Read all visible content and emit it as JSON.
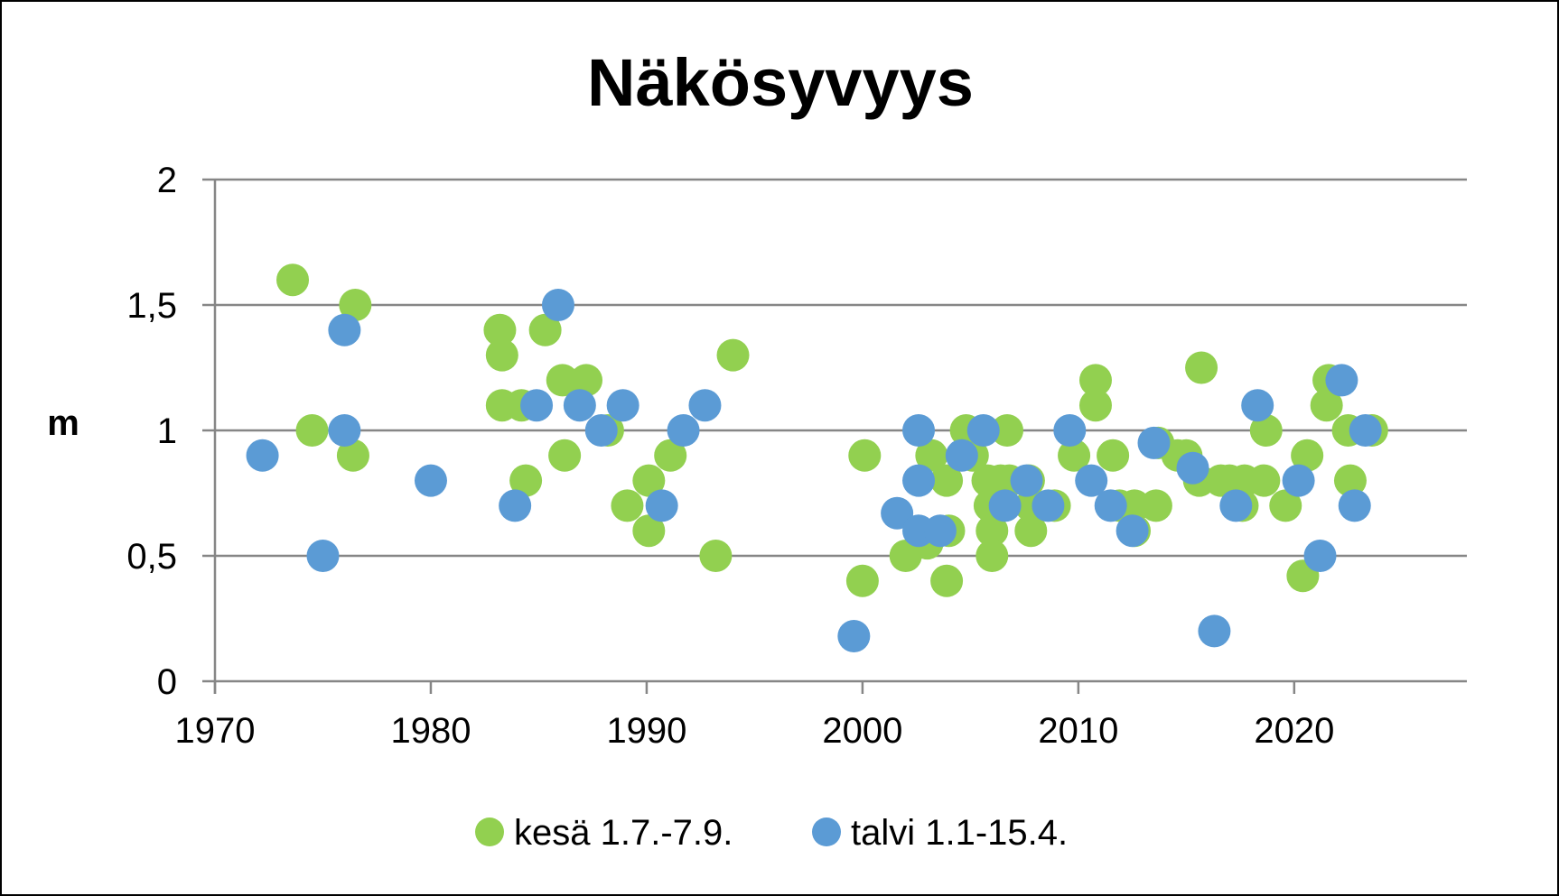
{
  "chart_data": {
    "type": "scatter",
    "title": "Näkösyvyys",
    "xlabel": "",
    "ylabel": "m",
    "xlim": [
      1970,
      2028
    ],
    "ylim": [
      0,
      2
    ],
    "x_ticks": [
      1970,
      1980,
      1990,
      2000,
      2010,
      2020
    ],
    "y_ticks": [
      0,
      0.5,
      1,
      1.5,
      2
    ],
    "y_tick_labels": [
      "0",
      "0,5",
      "1",
      "1,5",
      "2"
    ],
    "grid": "horizontal",
    "legend_position": "bottom",
    "series": [
      {
        "name": "kesä 1.7.-7.9.",
        "color": "#92d050",
        "points": [
          [
            1973.6,
            1.6
          ],
          [
            1974.5,
            1.0
          ],
          [
            1976.4,
            0.9
          ],
          [
            1976.5,
            1.5
          ],
          [
            1983.2,
            1.4
          ],
          [
            1983.3,
            1.3
          ],
          [
            1983.3,
            1.1
          ],
          [
            1984.2,
            1.1
          ],
          [
            1984.4,
            0.8
          ],
          [
            1985.3,
            1.4
          ],
          [
            1986.1,
            1.2
          ],
          [
            1986.2,
            0.9
          ],
          [
            1987.2,
            1.2
          ],
          [
            1988.2,
            1.0
          ],
          [
            1989.1,
            0.7
          ],
          [
            1990.1,
            0.6
          ],
          [
            1990.1,
            0.8
          ],
          [
            1991.1,
            0.9
          ],
          [
            1993.2,
            0.5
          ],
          [
            1994.0,
            1.3
          ],
          [
            2000.1,
            0.9
          ],
          [
            2000.0,
            0.4
          ],
          [
            2002.0,
            0.5
          ],
          [
            2003.0,
            0.55
          ],
          [
            2003.2,
            0.9
          ],
          [
            2003.9,
            0.8
          ],
          [
            2004.0,
            0.6
          ],
          [
            2003.9,
            0.4
          ],
          [
            2004.8,
            1.0
          ],
          [
            2005.1,
            0.9
          ],
          [
            2005.8,
            0.8
          ],
          [
            2005.9,
            0.7
          ],
          [
            2006.0,
            0.6
          ],
          [
            2006.0,
            0.5
          ],
          [
            2006.4,
            0.8
          ],
          [
            2006.7,
            1.0
          ],
          [
            2006.8,
            0.8
          ],
          [
            2007.7,
            0.8
          ],
          [
            2007.8,
            0.7
          ],
          [
            2007.8,
            0.6
          ],
          [
            2008.9,
            0.7
          ],
          [
            2009.8,
            0.9
          ],
          [
            2010.8,
            1.2
          ],
          [
            2010.8,
            1.1
          ],
          [
            2011.6,
            0.9
          ],
          [
            2011.9,
            0.7
          ],
          [
            2012.6,
            0.7
          ],
          [
            2012.6,
            0.6
          ],
          [
            2013.6,
            0.7
          ],
          [
            2013.7,
            0.95
          ],
          [
            2014.6,
            0.9
          ],
          [
            2015.0,
            0.9
          ],
          [
            2015.6,
            0.8
          ],
          [
            2015.7,
            1.25
          ],
          [
            2016.6,
            0.8
          ],
          [
            2017.0,
            0.8
          ],
          [
            2017.6,
            0.7
          ],
          [
            2017.7,
            0.8
          ],
          [
            2018.6,
            0.8
          ],
          [
            2018.7,
            1.0
          ],
          [
            2019.6,
            0.7
          ],
          [
            2020.4,
            0.42
          ],
          [
            2020.6,
            0.9
          ],
          [
            2021.5,
            1.1
          ],
          [
            2021.6,
            1.2
          ],
          [
            2022.5,
            1.0
          ],
          [
            2022.6,
            0.8
          ],
          [
            2023.6,
            1.0
          ]
        ]
      },
      {
        "name": "talvi 1.1-15.4.",
        "color": "#5b9bd5",
        "points": [
          [
            1972.2,
            0.9
          ],
          [
            1975.0,
            0.5
          ],
          [
            1976.0,
            1.4
          ],
          [
            1976.0,
            1.0
          ],
          [
            1980.0,
            0.8
          ],
          [
            1983.9,
            0.7
          ],
          [
            1984.9,
            1.1
          ],
          [
            1985.9,
            1.5
          ],
          [
            1986.9,
            1.1
          ],
          [
            1987.9,
            1.0
          ],
          [
            1988.9,
            1.1
          ],
          [
            1990.7,
            0.7
          ],
          [
            1991.7,
            1.0
          ],
          [
            1992.7,
            1.1
          ],
          [
            1999.6,
            0.18
          ],
          [
            2001.6,
            0.67
          ],
          [
            2002.6,
            1.0
          ],
          [
            2002.6,
            0.8
          ],
          [
            2002.6,
            0.6
          ],
          [
            2003.6,
            0.6
          ],
          [
            2004.6,
            0.9
          ],
          [
            2005.6,
            1.0
          ],
          [
            2006.6,
            0.7
          ],
          [
            2007.6,
            0.8
          ],
          [
            2008.6,
            0.7
          ],
          [
            2009.6,
            1.0
          ],
          [
            2010.6,
            0.8
          ],
          [
            2011.5,
            0.7
          ],
          [
            2012.5,
            0.6
          ],
          [
            2013.5,
            0.95
          ],
          [
            2015.3,
            0.85
          ],
          [
            2016.3,
            0.2
          ],
          [
            2017.3,
            0.7
          ],
          [
            2018.3,
            1.1
          ],
          [
            2020.2,
            0.8
          ],
          [
            2021.2,
            0.5
          ],
          [
            2022.2,
            1.2
          ],
          [
            2022.8,
            0.7
          ],
          [
            2023.3,
            1.0
          ]
        ]
      }
    ]
  }
}
